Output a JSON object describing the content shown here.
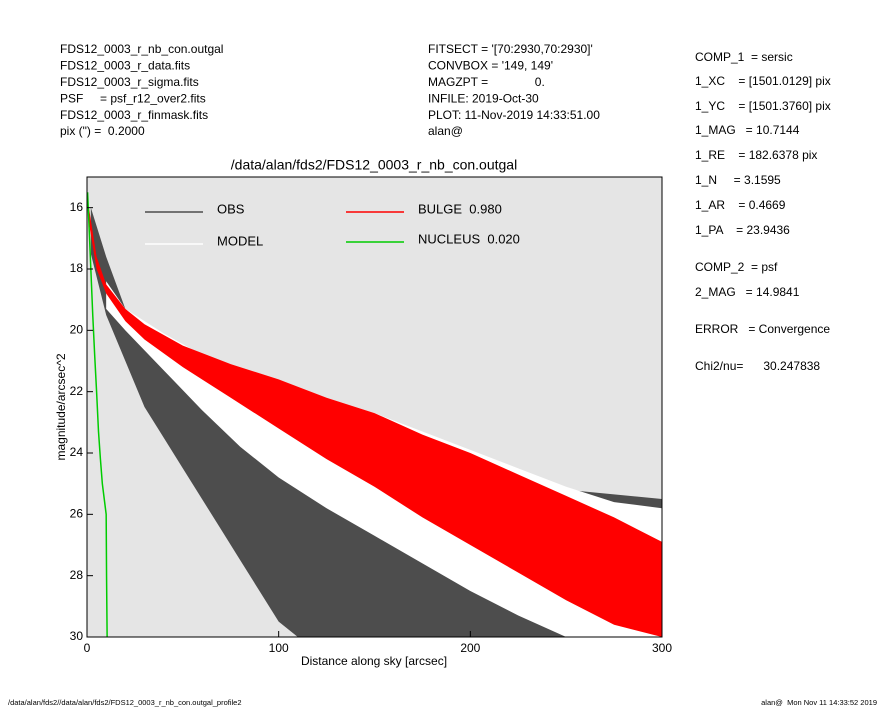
{
  "header": {
    "files": [
      "FDS12_0003_r_nb_con.outgal",
      "FDS12_0003_r_data.fits",
      "FDS12_0003_r_sigma.fits",
      "PSF     = psf_r12_over2.fits",
      "FDS12_0003_r_finmask.fits",
      "pix (\") =  0.2000"
    ],
    "settings": [
      "FITSECT = '[70:2930,70:2930]'",
      "CONVBOX = '149, 149'",
      "MAGZPT =              0.",
      "INFILE: 2019-Oct-30",
      "PLOT: 11-Nov-2019 14:33:51.00",
      "alan@"
    ],
    "parameters": [
      "COMP_1  = sersic",
      "1_XC    = [1501.0129] pix",
      "1_YC    = [1501.3760] pix",
      "1_MAG   = 10.7144",
      "1_RE    = 182.6378 pix",
      "1_N     = 3.1595",
      "1_AR    = 0.4669",
      "1_PA    = 23.9436",
      "COMP_2  = psf",
      "2_MAG   = 14.9841",
      "ERROR   = Convergence",
      "Chi2/nu=      30.247838"
    ]
  },
  "footer": {
    "left": "/data/alan/fds2//data/alan/fds2/FDS12_0003_r_nb_con.outgal_profile2",
    "right": "alan@  Mon Nov 11 14:33:52 2019"
  },
  "chart_data": {
    "type": "scatter",
    "title": "/data/alan/fds2/FDS12_0003_r_nb_con.outgal",
    "x_label": "Distance along sky [arcsec]",
    "y_label": "magnitude/arcsec^2",
    "xlim": [
      0,
      300
    ],
    "ylim": [
      30,
      15
    ],
    "xticks": [
      0,
      100,
      200,
      300
    ],
    "yticks": [
      16,
      18,
      20,
      22,
      24,
      26,
      28,
      30
    ],
    "background": "#e5e5e5",
    "series": [
      {
        "name": "OBS",
        "color": "#4d4d4d",
        "kind": "band",
        "x": [
          2,
          10,
          20,
          30,
          40,
          50,
          60,
          70,
          80,
          90,
          100,
          110,
          120,
          140,
          160,
          180,
          200,
          250,
          300
        ],
        "low": [
          16.0,
          17.6,
          19.3,
          20.3,
          20.9,
          21.2,
          21.4,
          21.5,
          21.6,
          21.8,
          22.0,
          22.6,
          23.4,
          24.0,
          24.3,
          24.5,
          24.7,
          25.2,
          25.5
        ],
        "high": [
          17.5,
          19.5,
          21.0,
          22.5,
          23.5,
          24.5,
          25.5,
          26.5,
          27.5,
          28.5,
          29.5,
          30,
          30,
          30,
          30,
          30,
          30,
          30,
          30
        ]
      },
      {
        "name": "MODEL",
        "color": "#ffffff",
        "kind": "band",
        "x": [
          10,
          20,
          40,
          60,
          80,
          100,
          125,
          150,
          175,
          200,
          225,
          250,
          275,
          300
        ],
        "low": [
          18.4,
          19.3,
          20.1,
          20.8,
          21.2,
          21.6,
          22.2,
          22.7,
          23.3,
          23.9,
          24.5,
          25.1,
          25.6,
          25.8
        ],
        "high": [
          19.3,
          20.0,
          21.3,
          22.6,
          23.8,
          24.8,
          25.8,
          26.7,
          27.6,
          28.5,
          29.3,
          30,
          30,
          30
        ]
      },
      {
        "name": "BULGE  0.980",
        "color": "#ff0000",
        "kind": "band",
        "x": [
          1,
          5,
          10,
          20,
          30,
          50,
          75,
          100,
          125,
          150,
          175,
          200,
          225,
          250,
          275,
          300
        ],
        "low": [
          16.0,
          17.6,
          18.5,
          19.3,
          19.8,
          20.5,
          21.1,
          21.6,
          22.2,
          22.7,
          23.4,
          24.0,
          24.7,
          25.4,
          26.1,
          26.9
        ],
        "high": [
          16.5,
          18.0,
          18.8,
          19.7,
          20.3,
          21.2,
          22.2,
          23.2,
          24.2,
          25.1,
          26.1,
          27.0,
          27.9,
          28.8,
          29.6,
          30
        ]
      },
      {
        "name": "NUCLEUS  0.020",
        "color": "#00cc00",
        "kind": "line",
        "x": [
          0.3,
          1,
          2,
          3,
          4,
          5,
          6,
          7,
          8,
          9,
          10,
          10.2,
          10.5
        ],
        "values": [
          15.5,
          16.5,
          18,
          19.5,
          20.8,
          22,
          23.3,
          24.2,
          25,
          25.5,
          26,
          28,
          30
        ]
      }
    ]
  }
}
